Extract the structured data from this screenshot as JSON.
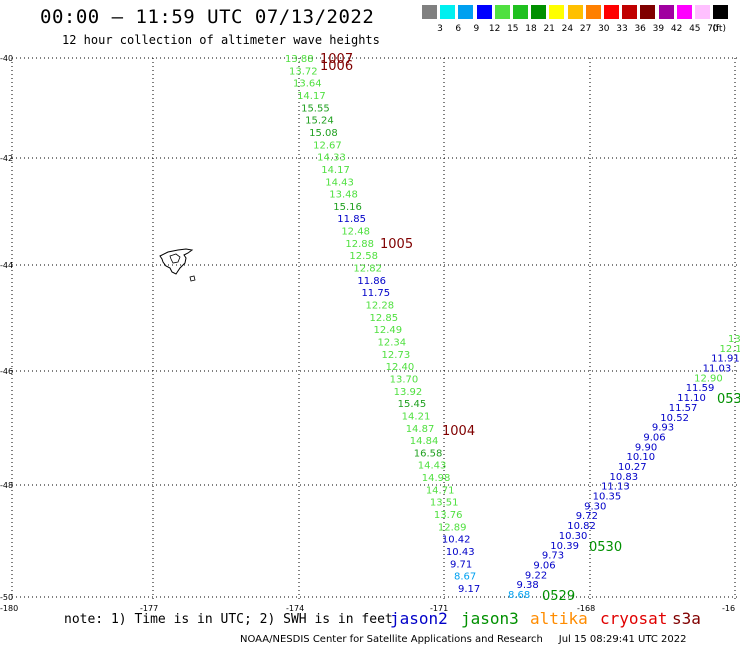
{
  "header": {
    "title": "00:00 – 11:59 UTC 07/13/2022",
    "subtitle": "12 hour collection of altimeter wave heights"
  },
  "legend": {
    "colors": [
      "#808080",
      "#00f0f0",
      "#00a0f0",
      "#0000ff",
      "#50e040",
      "#20c020",
      "#009000",
      "#ffff00",
      "#ffc000",
      "#ff8000",
      "#ff0000",
      "#c00000",
      "#800000",
      "#a000a0",
      "#ff00ff",
      "#ffc0ff",
      "#000000"
    ],
    "labels": [
      "3",
      "6",
      "9",
      "12",
      "15",
      "18",
      "21",
      "24",
      "27",
      "30",
      "33",
      "36",
      "39",
      "42",
      "45",
      "70"
    ],
    "unit": "(ft)"
  },
  "axes": {
    "lat_labels": [
      "-40",
      "-42",
      "-44",
      "-46",
      "-48",
      "-50"
    ],
    "lon_labels": [
      "-180",
      "-177",
      "-174",
      "-171",
      "-168",
      "-16"
    ]
  },
  "tracks": {
    "track1_values": [
      "13.88",
      "13.72",
      "13.64",
      "14.17",
      "15.55",
      "15.24",
      "15.08",
      "12.67",
      "14.33",
      "14.17",
      "14.43",
      "13.48",
      "15.16",
      "11.85",
      "12.48",
      "12.88",
      "12.58",
      "12.82",
      "11.86",
      "11.75",
      "12.28",
      "12.85",
      "12.49",
      "12.34",
      "12.73",
      "12.40",
      "13.70",
      "13.92",
      "15.45",
      "14.21",
      "14.87",
      "14.84",
      "16.58",
      "14.43",
      "14.98",
      "14.71",
      "13.51",
      "13.76",
      "12.89",
      "10.42",
      "10.43",
      "9.71",
      "8.67",
      "9.17"
    ],
    "track1_times": [
      "1007",
      "1006",
      "1005",
      "1004"
    ],
    "track2_values": [
      "8.68",
      "9.38",
      "9.22",
      "9.06",
      "9.73",
      "10.39",
      "10.30",
      "10.82",
      "9.72",
      "9.30",
      "10.35",
      "11.13",
      "10.83",
      "10.27",
      "10.10",
      "9.90",
      "9.06",
      "9.93",
      "10.52",
      "11.57",
      "11.10",
      "11.59",
      "12.90",
      "11.03",
      "11.91",
      "12.1",
      "13"
    ],
    "track2_times": [
      "0529",
      "0530",
      "053"
    ]
  },
  "note": "note: 1) Time is in UTC; 2) SWH is in feet",
  "satellites": [
    {
      "name": "jason2",
      "color": "#0000c8"
    },
    {
      "name": "jason3",
      "color": "#009000"
    },
    {
      "name": "altika",
      "color": "#ff8c00"
    },
    {
      "name": "cryosat",
      "color": "#e00000"
    },
    {
      "name": "s3a",
      "color": "#800000"
    }
  ],
  "footer": {
    "credit": "NOAA/NESDIS Center for Satellite Applications and Research",
    "timestamp": "Jul 15 08:29:41 UTC 2022"
  }
}
